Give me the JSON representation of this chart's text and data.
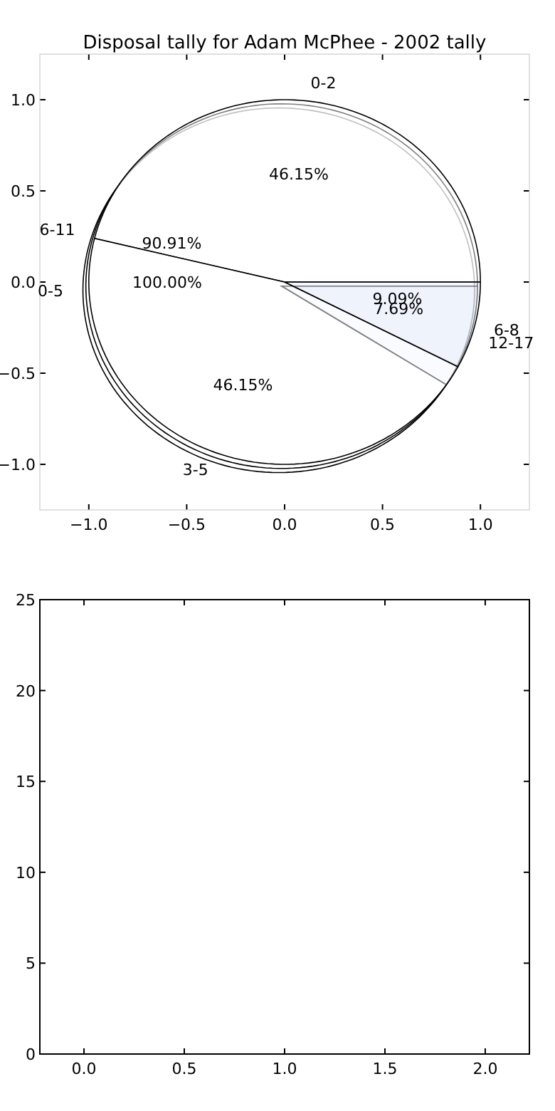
{
  "chart_data": [
    {
      "type": "scatter",
      "title": "Disposal tally for Adam McPhee - 2002 tally",
      "xlim": [
        -1.25,
        1.25
      ],
      "ylim": [
        -1.25,
        1.25
      ],
      "xticks": [
        {
          "value": -1,
          "label": "−1.0"
        },
        {
          "value": -0.5,
          "label": "−0.5"
        },
        {
          "value": 0,
          "label": "0.0"
        },
        {
          "value": 0.5,
          "label": "0.5"
        },
        {
          "value": 1,
          "label": "1.0"
        }
      ],
      "yticks": [
        {
          "value": -1,
          "label": "−1.0"
        },
        {
          "value": -0.5,
          "label": "−0.5"
        },
        {
          "value": 0,
          "label": "0.0"
        },
        {
          "value": 0.5,
          "label": "0.5"
        },
        {
          "value": 1,
          "label": "1.0"
        }
      ]
    },
    {
      "type": "pie",
      "categories": [
        "0-2",
        "3-5",
        "6-8"
      ],
      "values": [
        46.15,
        46.15,
        7.69
      ],
      "value_labels": [
        "46.15%",
        "46.15%",
        "7.69%"
      ],
      "colors": [
        "#ffffff",
        "#ffffff",
        "#eaf0fb"
      ]
    },
    {
      "type": "pie",
      "categories": [
        "6-11",
        "12-17"
      ],
      "values": [
        90.91,
        9.09
      ],
      "value_labels": [
        "90.91%",
        "9.09%"
      ],
      "colors": [
        "#ffffff",
        "#eaf0fb"
      ]
    },
    {
      "type": "pie",
      "categories": [
        "0-5"
      ],
      "values": [
        100
      ],
      "value_labels": [
        "100.00%"
      ],
      "colors": [
        "#ffffff"
      ]
    },
    {
      "type": "bar",
      "xlim": [
        -0.22,
        2.22
      ],
      "ylim": [
        0,
        25
      ],
      "xticks": [
        {
          "value": 0,
          "label": "0.0"
        },
        {
          "value": 0.5,
          "label": "0.5"
        },
        {
          "value": 1,
          "label": "1.0"
        },
        {
          "value": 1.5,
          "label": "1.5"
        },
        {
          "value": 2,
          "label": "2.0"
        }
      ],
      "yticks": [
        0,
        5,
        10,
        15,
        20,
        25
      ]
    }
  ]
}
